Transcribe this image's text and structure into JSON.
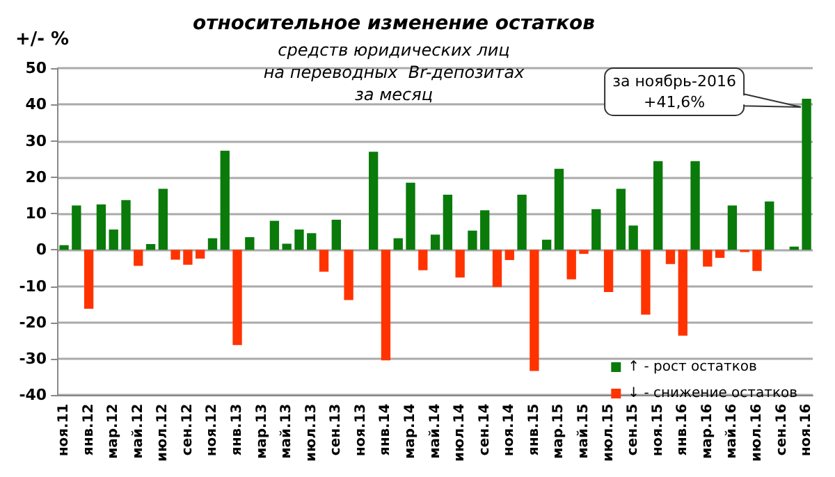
{
  "chart_data": {
    "type": "bar",
    "title": "относительное изменение остатков",
    "subtitle": "средств юридических лиц\nна переводных  Br-депозитах\nза месяц",
    "ylabel": "+/- %",
    "categories": [
      "ноя.11",
      null,
      "янв.12",
      null,
      "мар.12",
      null,
      "май.12",
      null,
      "июл.12",
      null,
      "сен.12",
      null,
      "ноя.12",
      null,
      "янв.13",
      null,
      "мар.13",
      null,
      "май.13",
      null,
      "июл.13",
      null,
      "сен.13",
      null,
      "ноя.13",
      null,
      "янв.14",
      null,
      "мар.14",
      null,
      "май.14",
      null,
      "июл.14",
      null,
      "сен.14",
      null,
      "ноя.14",
      null,
      "янв.15",
      null,
      "мар.15",
      null,
      "май.15",
      null,
      "июл.15",
      null,
      "сен.15",
      null,
      "ноя.15",
      null,
      "янв.16",
      null,
      "мар.16",
      null,
      "май.16",
      null,
      "июл.16",
      null,
      "сен.16",
      null,
      "ноя.16"
    ],
    "series": [
      {
        "name": "↑ - рост остатков",
        "color": "#0a7a0a",
        "values": [
          1.3,
          12.2,
          null,
          12.5,
          5.6,
          13.7,
          null,
          1.6,
          16.8,
          null,
          null,
          null,
          3.2,
          27.3,
          null,
          3.5,
          null,
          8.0,
          1.7,
          5.6,
          4.6,
          null,
          8.3,
          null,
          null,
          27.0,
          null,
          3.2,
          18.5,
          null,
          4.2,
          15.2,
          null,
          5.3,
          10.9,
          null,
          null,
          15.2,
          null,
          2.8,
          22.3,
          null,
          null,
          11.2,
          null,
          16.8,
          6.7,
          null,
          24.4,
          null,
          null,
          24.4,
          null,
          null,
          12.2,
          null,
          null,
          13.3,
          null,
          0.9,
          41.6
        ]
      },
      {
        "name": "↓ - снижение остатков",
        "color": "#ff3300",
        "values": [
          null,
          null,
          -16.2,
          null,
          null,
          null,
          -4.4,
          null,
          null,
          -2.7,
          -4.1,
          -2.4,
          null,
          null,
          -26.2,
          null,
          null,
          null,
          null,
          null,
          null,
          -6.0,
          null,
          -13.8,
          null,
          null,
          -30.4,
          null,
          null,
          -5.6,
          null,
          null,
          -7.6,
          null,
          null,
          -10.2,
          -2.8,
          null,
          -33.3,
          null,
          null,
          -8.1,
          -1.1,
          null,
          -11.6,
          null,
          null,
          -17.8,
          null,
          -3.9,
          -23.6,
          null,
          -4.6,
          -2.2,
          null,
          -0.6,
          -5.8,
          null,
          null,
          null,
          null
        ]
      }
    ],
    "stacked": true,
    "ylim": [
      -40,
      50
    ],
    "yticks": [
      -40,
      -30,
      -20,
      -10,
      0,
      10,
      20,
      30,
      40,
      50
    ],
    "grid": "y",
    "legend": "bottom right",
    "annotations": [
      {
        "text": "за ноябрь-2016\n+41,6%",
        "x": "ноя.16",
        "y": 41.6
      }
    ]
  }
}
